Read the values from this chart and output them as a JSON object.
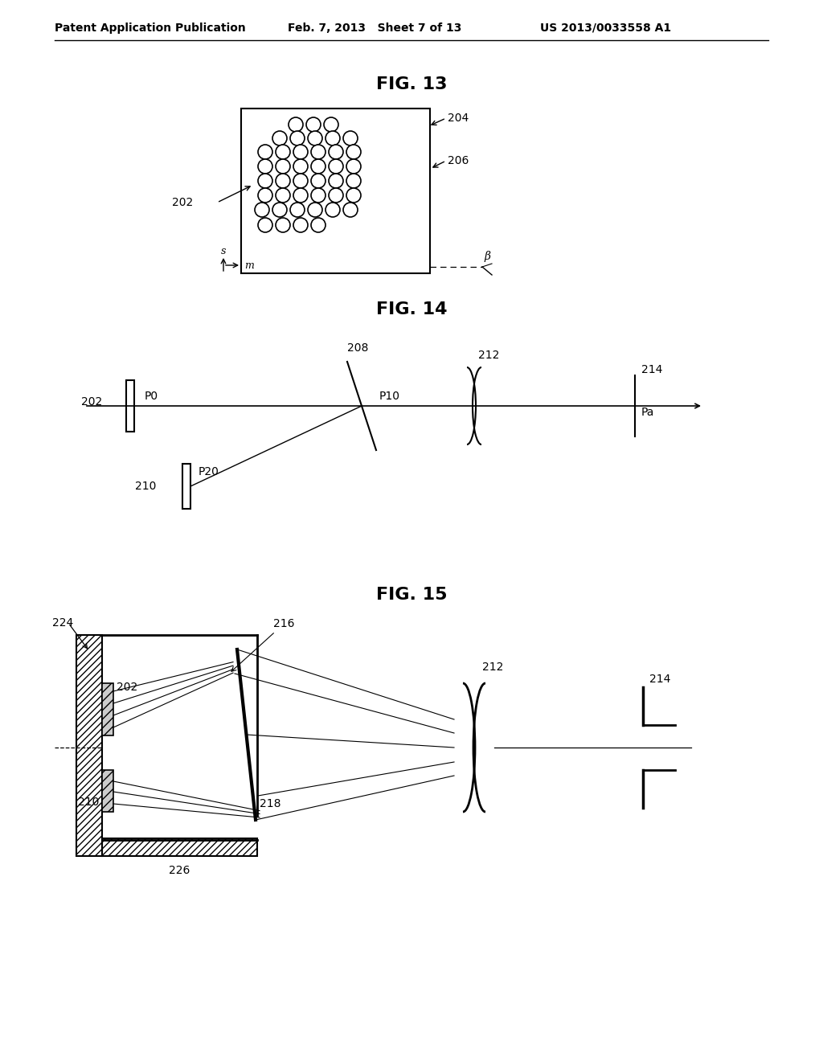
{
  "header_left": "Patent Application Publication",
  "header_mid": "Feb. 7, 2013   Sheet 7 of 13",
  "header_right": "US 2013/0033558 A1",
  "fig13_title": "FIG. 13",
  "fig14_title": "FIG. 14",
  "fig15_title": "FIG. 15",
  "bg_color": "#ffffff",
  "line_color": "#000000"
}
